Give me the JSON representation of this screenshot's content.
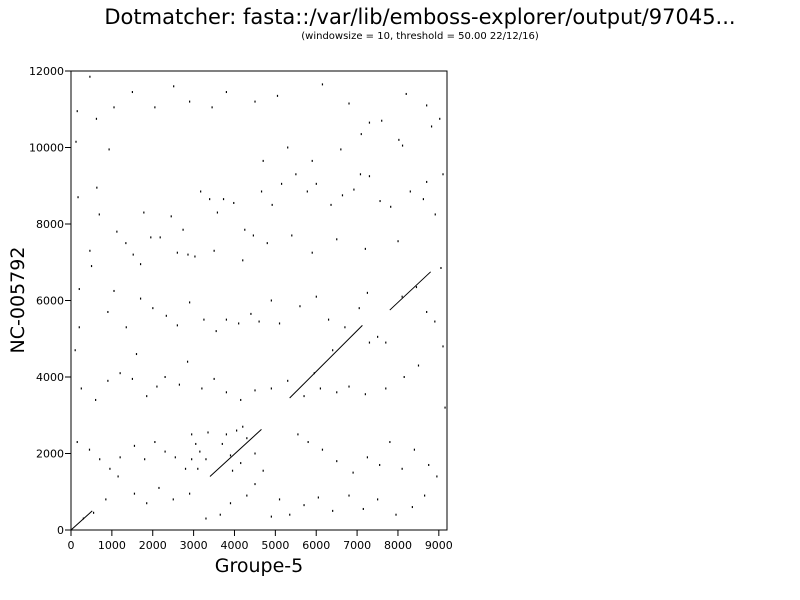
{
  "chart_data": {
    "type": "scatter",
    "title": "Dotmatcher: fasta::/var/lib/emboss-explorer/output/97045...",
    "subtitle": "(windowsize = 10, threshold = 50.00  22/12/16)",
    "xlabel": "Groupe-5",
    "ylabel": "NC-005792",
    "xlim": [
      0,
      9200
    ],
    "ylim": [
      0,
      12000
    ],
    "x_ticks": [
      0,
      1000,
      2000,
      3000,
      4000,
      5000,
      6000,
      7000,
      8000,
      9000
    ],
    "y_ticks": [
      0,
      2000,
      4000,
      6000,
      8000,
      10000,
      12000
    ],
    "x_tick_labels": [
      "0",
      "1000",
      "2000",
      "3000",
      "4000",
      "5000",
      "6000",
      "7000",
      "8000",
      "9000"
    ],
    "y_tick_labels": [
      "0",
      "2000",
      "4000",
      "6000",
      "8000",
      "10000",
      "12000"
    ],
    "grid": false,
    "legend": "none",
    "diagonals": [
      {
        "x": [
          0,
          520
        ],
        "y": [
          0,
          500
        ]
      },
      {
        "x": [
          3400,
          4660
        ],
        "y": [
          1400,
          2630
        ]
      },
      {
        "x": [
          5350,
          7130
        ],
        "y": [
          3450,
          5350
        ]
      },
      {
        "x": [
          7800,
          8800
        ],
        "y": [
          5750,
          6750
        ]
      }
    ],
    "points": [
      [
        460,
        11850
      ],
      [
        150,
        10950
      ],
      [
        620,
        10750
      ],
      [
        120,
        10150
      ],
      [
        930,
        9950
      ],
      [
        630,
        8950
      ],
      [
        170,
        8700
      ],
      [
        690,
        8250
      ],
      [
        460,
        7300
      ],
      [
        1120,
        7800
      ],
      [
        1340,
        7500
      ],
      [
        1520,
        7200
      ],
      [
        1780,
        8300
      ],
      [
        1950,
        7650
      ],
      [
        2180,
        7650
      ],
      [
        2450,
        8200
      ],
      [
        2740,
        7850
      ],
      [
        2860,
        7200
      ],
      [
        3030,
        7150
      ],
      [
        3170,
        8850
      ],
      [
        3390,
        8650
      ],
      [
        3580,
        8300
      ],
      [
        3730,
        8650
      ],
      [
        3980,
        8550
      ],
      [
        4250,
        7850
      ],
      [
        4460,
        7700
      ],
      [
        4660,
        8850
      ],
      [
        4920,
        8500
      ],
      [
        5150,
        9050
      ],
      [
        5500,
        9300
      ],
      [
        5780,
        8850
      ],
      [
        6000,
        9050
      ],
      [
        6360,
        8500
      ],
      [
        6640,
        8750
      ],
      [
        6920,
        8900
      ],
      [
        7080,
        9300
      ],
      [
        7300,
        9250
      ],
      [
        7560,
        8600
      ],
      [
        7820,
        8450
      ],
      [
        8300,
        8850
      ],
      [
        8620,
        8650
      ],
      [
        8910,
        8250
      ],
      [
        8020,
        10200
      ],
      [
        8110,
        10050
      ],
      [
        7300,
        10650
      ],
      [
        6800,
        11150
      ],
      [
        6150,
        11650
      ],
      [
        5050,
        11350
      ],
      [
        4500,
        11200
      ],
      [
        3800,
        11450
      ],
      [
        3450,
        11050
      ],
      [
        2900,
        11200
      ],
      [
        2510,
        11600
      ],
      [
        2050,
        11050
      ],
      [
        1500,
        11450
      ],
      [
        1050,
        11050
      ],
      [
        8820,
        10550
      ],
      [
        9020,
        10750
      ],
      [
        8700,
        9100
      ],
      [
        8000,
        7550
      ],
      [
        7200,
        7350
      ],
      [
        6500,
        7600
      ],
      [
        5900,
        7250
      ],
      [
        5400,
        7700
      ],
      [
        4800,
        7500
      ],
      [
        4200,
        7050
      ],
      [
        3500,
        7300
      ],
      [
        2600,
        7250
      ],
      [
        1700,
        6950
      ],
      [
        500,
        6900
      ],
      [
        200,
        6300
      ],
      [
        1050,
        6250
      ],
      [
        1700,
        6050
      ],
      [
        2000,
        5800
      ],
      [
        2330,
        5600
      ],
      [
        2600,
        5350
      ],
      [
        2900,
        5950
      ],
      [
        3250,
        5500
      ],
      [
        3550,
        5200
      ],
      [
        3800,
        5500
      ],
      [
        4100,
        5400
      ],
      [
        4400,
        5650
      ],
      [
        4600,
        5450
      ],
      [
        4900,
        6000
      ],
      [
        5100,
        5400
      ],
      [
        5600,
        5850
      ],
      [
        6000,
        6100
      ],
      [
        6300,
        5500
      ],
      [
        6700,
        5300
      ],
      [
        7050,
        5800
      ],
      [
        7250,
        6200
      ],
      [
        7500,
        5050
      ],
      [
        7700,
        4900
      ],
      [
        8450,
        6350
      ],
      [
        8700,
        5700
      ],
      [
        9050,
        6850
      ],
      [
        8900,
        5450
      ],
      [
        8500,
        4300
      ],
      [
        8150,
        4000
      ],
      [
        7700,
        3700
      ],
      [
        7200,
        3550
      ],
      [
        6800,
        3750
      ],
      [
        6500,
        3600
      ],
      [
        6100,
        3700
      ],
      [
        5700,
        3500
      ],
      [
        5300,
        3900
      ],
      [
        4900,
        3700
      ],
      [
        4500,
        3650
      ],
      [
        4150,
        3400
      ],
      [
        3800,
        3600
      ],
      [
        3500,
        3950
      ],
      [
        3200,
        3700
      ],
      [
        2850,
        4400
      ],
      [
        2650,
        3800
      ],
      [
        2300,
        4000
      ],
      [
        2100,
        3750
      ],
      [
        1850,
        3500
      ],
      [
        1500,
        3950
      ],
      [
        1200,
        4100
      ],
      [
        900,
        3900
      ],
      [
        600,
        3400
      ],
      [
        250,
        3700
      ],
      [
        150,
        2300
      ],
      [
        450,
        2100
      ],
      [
        700,
        1850
      ],
      [
        950,
        1600
      ],
      [
        1200,
        1900
      ],
      [
        1550,
        2200
      ],
      [
        1800,
        1850
      ],
      [
        2050,
        2300
      ],
      [
        2300,
        2050
      ],
      [
        2550,
        1900
      ],
      [
        2800,
        1600
      ],
      [
        2950,
        2500
      ],
      [
        3050,
        2250
      ],
      [
        3150,
        2050
      ],
      [
        3300,
        1850
      ],
      [
        3100,
        1600
      ],
      [
        2950,
        1850
      ],
      [
        3350,
        2550
      ],
      [
        3700,
        2250
      ],
      [
        3900,
        1950
      ],
      [
        4150,
        1750
      ],
      [
        4300,
        2400
      ],
      [
        4500,
        2000
      ],
      [
        4700,
        1550
      ],
      [
        4500,
        1200
      ],
      [
        4300,
        900
      ],
      [
        3900,
        700
      ],
      [
        3650,
        400
      ],
      [
        3300,
        300
      ],
      [
        2900,
        950
      ],
      [
        2500,
        800
      ],
      [
        2150,
        1100
      ],
      [
        1850,
        700
      ],
      [
        1550,
        950
      ],
      [
        1150,
        1400
      ],
      [
        850,
        800
      ],
      [
        550,
        450
      ],
      [
        300,
        300
      ],
      [
        5550,
        2500
      ],
      [
        5800,
        2300
      ],
      [
        6150,
        2100
      ],
      [
        6500,
        1800
      ],
      [
        6900,
        1500
      ],
      [
        7250,
        1900
      ],
      [
        7550,
        1700
      ],
      [
        7800,
        2300
      ],
      [
        8100,
        1600
      ],
      [
        8400,
        2100
      ],
      [
        8750,
        1700
      ],
      [
        8950,
        1400
      ],
      [
        8650,
        900
      ],
      [
        8350,
        600
      ],
      [
        7950,
        400
      ],
      [
        7500,
        800
      ],
      [
        7150,
        550
      ],
      [
        6800,
        900
      ],
      [
        6400,
        500
      ],
      [
        6050,
        850
      ],
      [
        5700,
        650
      ],
      [
        5350,
        400
      ],
      [
        5100,
        800
      ],
      [
        4900,
        350
      ],
      [
        5950,
        4100
      ],
      [
        6400,
        4700
      ],
      [
        7300,
        4900
      ],
      [
        8100,
        6100
      ],
      [
        4200,
        2700
      ],
      [
        4050,
        2600
      ],
      [
        3800,
        2500
      ],
      [
        3950,
        1550
      ],
      [
        4700,
        9650
      ],
      [
        5300,
        10000
      ],
      [
        5900,
        9650
      ],
      [
        6600,
        9950
      ],
      [
        7100,
        10350
      ],
      [
        7600,
        10700
      ],
      [
        8200,
        11400
      ],
      [
        8700,
        11100
      ],
      [
        9100,
        9300
      ],
      [
        9100,
        4800
      ],
      [
        9150,
        3200
      ],
      [
        100,
        4700
      ],
      [
        200,
        5300
      ],
      [
        900,
        5700
      ],
      [
        1350,
        5300
      ],
      [
        1600,
        4600
      ]
    ]
  }
}
